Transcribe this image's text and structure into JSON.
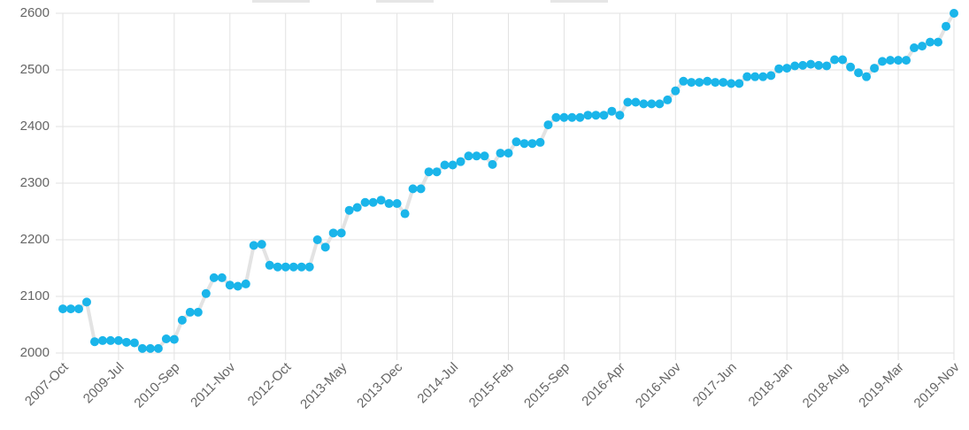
{
  "chart_data": {
    "type": "line",
    "categories": [
      "2007-Oct",
      null,
      null,
      null,
      null,
      null,
      null,
      "2009-Jul",
      null,
      null,
      null,
      null,
      null,
      null,
      "2010-Sep",
      null,
      null,
      null,
      null,
      null,
      null,
      "2011-Nov",
      null,
      null,
      null,
      null,
      null,
      null,
      "2012-Oct",
      null,
      null,
      null,
      null,
      null,
      null,
      "2013-May",
      null,
      null,
      null,
      null,
      null,
      null,
      "2013-Dec",
      null,
      null,
      null,
      null,
      null,
      null,
      "2014-Jul",
      null,
      null,
      null,
      null,
      null,
      null,
      "2015-Feb",
      null,
      null,
      null,
      null,
      null,
      null,
      "2015-Sep",
      null,
      null,
      null,
      null,
      null,
      null,
      "2016-Apr",
      null,
      null,
      null,
      null,
      null,
      null,
      "2016-Nov",
      null,
      null,
      null,
      null,
      null,
      null,
      "2017-Jun",
      null,
      null,
      null,
      null,
      null,
      null,
      "2018-Jan",
      null,
      null,
      null,
      null,
      null,
      null,
      "2018-Aug",
      null,
      null,
      null,
      null,
      null,
      null,
      "2019-Mar",
      null,
      null,
      null,
      null,
      null,
      null,
      "2019-Nov"
    ],
    "values": [
      2078,
      2078,
      2078,
      2090,
      2020,
      2022,
      2022,
      2022,
      2019,
      2018,
      2008,
      2008,
      2008,
      2025,
      2024,
      2058,
      2072,
      2072,
      2105,
      2133,
      2133,
      2120,
      2118,
      2122,
      2190,
      2192,
      2155,
      2152,
      2152,
      2152,
      2152,
      2152,
      2200,
      2187,
      2212,
      2212,
      2252,
      2257,
      2266,
      2266,
      2270,
      2264,
      2264,
      2246,
      2290,
      2290,
      2320,
      2320,
      2332,
      2332,
      2338,
      2348,
      2348,
      2348,
      2333,
      2353,
      2353,
      2373,
      2370,
      2370,
      2372,
      2403,
      2416,
      2416,
      2416,
      2416,
      2420,
      2420,
      2420,
      2427,
      2420,
      2443,
      2443,
      2440,
      2440,
      2440,
      2447,
      2463,
      2480,
      2478,
      2478,
      2480,
      2478,
      2478,
      2476,
      2476,
      2488,
      2488,
      2488,
      2490,
      2502,
      2503,
      2507,
      2508,
      2510,
      2508,
      2507,
      2518,
      2518,
      2505,
      2495,
      2488,
      2503,
      2515,
      2517,
      2517,
      2517,
      2539,
      2542,
      2549,
      2549,
      2577,
      2600
    ],
    "color": "#1ab5ea",
    "line_color": "#e3e3e3",
    "ylim": [
      2000,
      2600
    ],
    "yticks": [
      2000,
      2100,
      2200,
      2300,
      2400,
      2500,
      2600
    ],
    "grid": true
  }
}
